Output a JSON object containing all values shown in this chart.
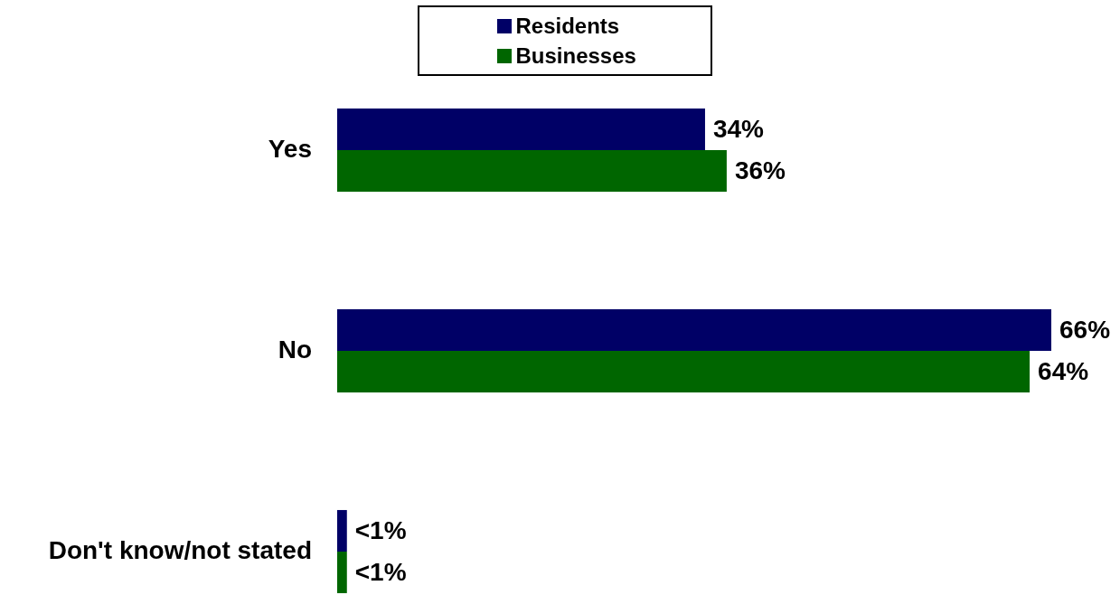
{
  "chart_data": {
    "type": "bar",
    "orientation": "horizontal",
    "categories": [
      "Yes",
      "No",
      "Don't know/not stated"
    ],
    "series": [
      {
        "name": "Residents",
        "color": "#000066",
        "values": [
          34,
          66,
          0.9
        ],
        "value_labels": [
          "34%",
          "66%",
          "<1%"
        ]
      },
      {
        "name": "Businesses",
        "color": "#006600",
        "values": [
          36,
          64,
          0.9
        ],
        "value_labels": [
          "36%",
          "64%",
          "<1%"
        ]
      }
    ],
    "legend": "top",
    "tick_labels": "y"
  }
}
